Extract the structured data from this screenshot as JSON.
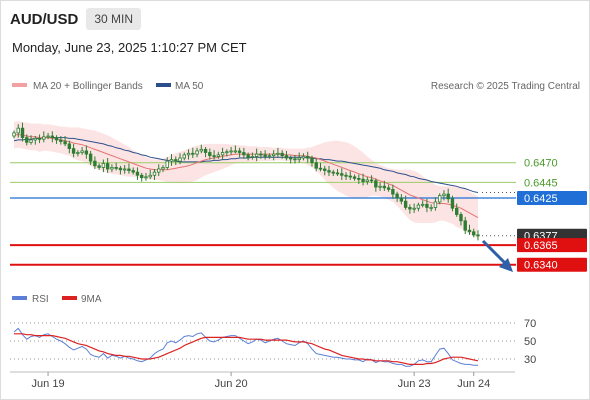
{
  "header": {
    "symbol": "AUD/USD",
    "timeframe": "30 MIN",
    "datetime": "Monday, June 23, 2025 1:10:27 PM CET"
  },
  "legend": {
    "ma20_bb": "MA 20 + Bollinger Bands",
    "ma50": "MA 50",
    "copyright": "Research © 2025 Trading Central",
    "rsi": "RSI",
    "ma9": "9MA"
  },
  "colors": {
    "candle": "#2e7d32",
    "ma20": "#e57373",
    "bollinger_fill": "#fde4e4",
    "ma50": "#2c4f8c",
    "green_level": "#9ccc65",
    "blue_level": "#1f6fd6",
    "red_level": "#e01010",
    "current_label": "#333333",
    "arrow": "#2e5fa8",
    "rsi": "#5b7fd6",
    "rsi_ma": "#dd2222"
  },
  "chart_data": {
    "type": "candlestick",
    "series_names": [
      "AUD/USD",
      "MA 20 + Bollinger Bands",
      "MA 50",
      "RSI",
      "9MA"
    ],
    "x_ticks": [
      "Jun 19",
      "Jun 20",
      "Jun 23",
      "Jun 24"
    ],
    "price_levels": [
      {
        "value": 0.647,
        "label": "0.6470",
        "kind": "resistance"
      },
      {
        "value": 0.6445,
        "label": "0.6445",
        "kind": "resistance"
      },
      {
        "value": 0.6425,
        "label": "0.6425",
        "kind": "pivot"
      },
      {
        "value": 0.6377,
        "label": "0.6377",
        "kind": "current"
      },
      {
        "value": 0.6365,
        "label": "0.6365",
        "kind": "target"
      },
      {
        "value": 0.634,
        "label": "0.6340",
        "kind": "target"
      }
    ],
    "price_range": [
      0.6318,
      0.6555
    ],
    "rsi_ticks": [
      70,
      50,
      30
    ],
    "rsi_range": [
      20,
      80
    ],
    "close": [
      0.6508,
      0.6514,
      0.6502,
      0.6496,
      0.6499,
      0.6501,
      0.65,
      0.6503,
      0.6504,
      0.6502,
      0.6499,
      0.6497,
      0.6494,
      0.6488,
      0.6482,
      0.6483,
      0.6485,
      0.6481,
      0.6472,
      0.6466,
      0.6464,
      0.6469,
      0.6462,
      0.6464,
      0.6463,
      0.6461,
      0.6462,
      0.646,
      0.6458,
      0.6454,
      0.6451,
      0.6452,
      0.6454,
      0.6458,
      0.6462,
      0.6464,
      0.6472,
      0.6474,
      0.6472,
      0.6476,
      0.648,
      0.6482,
      0.6481,
      0.6485,
      0.6487,
      0.6483,
      0.6479,
      0.6478,
      0.648,
      0.6483,
      0.6484,
      0.6485,
      0.6485,
      0.6483,
      0.648,
      0.6477,
      0.6478,
      0.6481,
      0.648,
      0.6478,
      0.6479,
      0.6481,
      0.6482,
      0.6479,
      0.6476,
      0.6475,
      0.6474,
      0.6476,
      0.6478,
      0.6476,
      0.647,
      0.6463,
      0.6462,
      0.646,
      0.6458,
      0.6457,
      0.6456,
      0.6454,
      0.6453,
      0.6452,
      0.645,
      0.6449,
      0.6446,
      0.6448,
      0.6447,
      0.6439,
      0.644,
      0.6438,
      0.6436,
      0.643,
      0.6425,
      0.6421,
      0.6413,
      0.6411,
      0.6412,
      0.6416,
      0.6417,
      0.6413,
      0.6413,
      0.642,
      0.6428,
      0.643,
      0.6424,
      0.6412,
      0.6404,
      0.6396,
      0.6384,
      0.6382,
      0.6378,
      0.6377
    ],
    "ma20": [
      0.6505,
      0.6506,
      0.6505,
      0.6504,
      0.6503,
      0.6503,
      0.6502,
      0.6502,
      0.6502,
      0.6501,
      0.65,
      0.6499,
      0.6498,
      0.6497,
      0.6495,
      0.6494,
      0.6493,
      0.6491,
      0.6489,
      0.6487,
      0.6485,
      0.6483,
      0.6481,
      0.6479,
      0.6477,
      0.6475,
      0.6473,
      0.6471,
      0.6469,
      0.6467,
      0.6465,
      0.6463,
      0.6462,
      0.6461,
      0.6461,
      0.6461,
      0.6461,
      0.6462,
      0.6463,
      0.6464,
      0.6465,
      0.6466,
      0.6468,
      0.647,
      0.6472,
      0.6474,
      0.6475,
      0.6476,
      0.6477,
      0.6478,
      0.6479,
      0.648,
      0.6481,
      0.6481,
      0.6481,
      0.6481,
      0.6481,
      0.6481,
      0.6481,
      0.6481,
      0.6481,
      0.6481,
      0.6481,
      0.6481,
      0.648,
      0.648,
      0.6479,
      0.6479,
      0.6479,
      0.6478,
      0.6477,
      0.6476,
      0.6474,
      0.6472,
      0.647,
      0.6468,
      0.6466,
      0.6464,
      0.6462,
      0.646,
      0.6458,
      0.6456,
      0.6454,
      0.6452,
      0.6451,
      0.6449,
      0.6447,
      0.6445,
      0.6443,
      0.6441,
      0.6438,
      0.6435,
      0.6432,
      0.6429,
      0.6427,
      0.6425,
      0.6423,
      0.6421,
      0.6419,
      0.6418,
      0.6418,
      0.6418,
      0.6417,
      0.6416,
      0.6414,
      0.6412,
      0.6409,
      0.6406,
      0.6403,
      0.64
    ],
    "bb_upper": [
      0.6522,
      0.6523,
      0.6522,
      0.6521,
      0.652,
      0.652,
      0.652,
      0.6519,
      0.6519,
      0.6518,
      0.6517,
      0.6516,
      0.6516,
      0.6515,
      0.6515,
      0.6515,
      0.6514,
      0.6513,
      0.6512,
      0.6511,
      0.6509,
      0.6507,
      0.6505,
      0.6502,
      0.6499,
      0.6496,
      0.6493,
      0.649,
      0.6486,
      0.6483,
      0.648,
      0.6477,
      0.6475,
      0.6474,
      0.6474,
      0.6475,
      0.6477,
      0.648,
      0.6482,
      0.6484,
      0.6486,
      0.6488,
      0.649,
      0.6492,
      0.6493,
      0.6494,
      0.6494,
      0.6494,
      0.6494,
      0.6494,
      0.6494,
      0.6493,
      0.6493,
      0.6492,
      0.6492,
      0.6491,
      0.6491,
      0.6491,
      0.649,
      0.649,
      0.649,
      0.6489,
      0.6489,
      0.6489,
      0.6488,
      0.6488,
      0.6488,
      0.6488,
      0.6488,
      0.6489,
      0.649,
      0.6492,
      0.6494,
      0.6496,
      0.6497,
      0.6498,
      0.6498,
      0.6497,
      0.6496,
      0.6494,
      0.6491,
      0.6487,
      0.6483,
      0.6478,
      0.6474,
      0.647,
      0.6467,
      0.6465,
      0.6463,
      0.6462,
      0.6461,
      0.6461,
      0.6461,
      0.6461,
      0.646,
      0.6457,
      0.6453,
      0.6449,
      0.6445,
      0.6442,
      0.644,
      0.644,
      0.644,
      0.644,
      0.644,
      0.6438,
      0.6436,
      0.6433,
      0.643,
      0.6427
    ],
    "bb_lower": [
      0.6488,
      0.6489,
      0.6488,
      0.6487,
      0.6486,
      0.6486,
      0.6484,
      0.6485,
      0.6485,
      0.6484,
      0.6483,
      0.6482,
      0.648,
      0.6479,
      0.6475,
      0.6473,
      0.6472,
      0.6469,
      0.6466,
      0.6463,
      0.6461,
      0.6459,
      0.6457,
      0.6456,
      0.6455,
      0.6454,
      0.6453,
      0.6452,
      0.6452,
      0.6451,
      0.645,
      0.6449,
      0.6449,
      0.6448,
      0.6448,
      0.6447,
      0.6445,
      0.6444,
      0.6444,
      0.6444,
      0.6444,
      0.6444,
      0.6446,
      0.6448,
      0.6451,
      0.6454,
      0.6456,
      0.6458,
      0.646,
      0.6462,
      0.6464,
      0.6467,
      0.6469,
      0.647,
      0.647,
      0.6471,
      0.6471,
      0.6471,
      0.6472,
      0.6472,
      0.6472,
      0.6473,
      0.6473,
      0.6473,
      0.6472,
      0.6472,
      0.647,
      0.647,
      0.647,
      0.6467,
      0.6464,
      0.646,
      0.6454,
      0.6448,
      0.6443,
      0.6438,
      0.6434,
      0.6431,
      0.6428,
      0.6426,
      0.6425,
      0.6425,
      0.6425,
      0.6426,
      0.6428,
      0.6428,
      0.6427,
      0.6425,
      0.6423,
      0.642,
      0.6415,
      0.6409,
      0.6403,
      0.6397,
      0.6394,
      0.6393,
      0.6393,
      0.6393,
      0.6393,
      0.6394,
      0.6396,
      0.6396,
      0.6394,
      0.6392,
      0.6388,
      0.6386,
      0.6382,
      0.6379,
      0.6376,
      0.6373
    ],
    "ma50": [
      0.6498,
      0.6499,
      0.6499,
      0.65,
      0.65,
      0.6501,
      0.6501,
      0.6502,
      0.6502,
      0.6502,
      0.6502,
      0.6502,
      0.6502,
      0.6501,
      0.6501,
      0.65,
      0.6499,
      0.6498,
      0.6497,
      0.6496,
      0.6495,
      0.6494,
      0.6492,
      0.6491,
      0.6489,
      0.6488,
      0.6486,
      0.6485,
      0.6483,
      0.6482,
      0.648,
      0.6479,
      0.6477,
      0.6476,
      0.6475,
      0.6474,
      0.6473,
      0.6472,
      0.6472,
      0.6471,
      0.6471,
      0.6471,
      0.6471,
      0.6471,
      0.6471,
      0.6472,
      0.6472,
      0.6473,
      0.6473,
      0.6474,
      0.6474,
      0.6475,
      0.6475,
      0.6476,
      0.6476,
      0.6476,
      0.6477,
      0.6477,
      0.6477,
      0.6477,
      0.6477,
      0.6477,
      0.6477,
      0.6477,
      0.6477,
      0.6477,
      0.6477,
      0.6477,
      0.6477,
      0.6476,
      0.6476,
      0.6475,
      0.6475,
      0.6474,
      0.6474,
      0.6473,
      0.6472,
      0.6472,
      0.6471,
      0.647,
      0.6469,
      0.6468,
      0.6467,
      0.6466,
      0.6465,
      0.6464,
      0.6463,
      0.6461,
      0.646,
      0.6459,
      0.6457,
      0.6456,
      0.6455,
      0.6453,
      0.6452,
      0.645,
      0.6449,
      0.6448,
      0.6446,
      0.6445,
      0.6444,
      0.6443,
      0.6442,
      0.6441,
      0.644,
      0.6438,
      0.6437,
      0.6435,
      0.6433,
      0.6432
    ],
    "rsi": [
      60,
      64,
      57,
      52,
      55,
      56,
      54,
      57,
      58,
      55,
      52,
      50,
      47,
      43,
      40,
      42,
      44,
      41,
      35,
      33,
      32,
      36,
      31,
      34,
      33,
      31,
      33,
      31,
      30,
      28,
      27,
      29,
      31,
      36,
      39,
      41,
      48,
      50,
      48,
      51,
      55,
      56,
      55,
      58,
      59,
      54,
      50,
      49,
      51,
      54,
      55,
      56,
      56,
      53,
      50,
      47,
      49,
      52,
      51,
      48,
      50,
      52,
      53,
      50,
      47,
      46,
      45,
      48,
      50,
      47,
      41,
      36,
      35,
      34,
      33,
      32,
      32,
      31,
      30,
      30,
      29,
      29,
      27,
      30,
      29,
      26,
      28,
      27,
      27,
      25,
      24,
      24,
      22,
      22,
      24,
      28,
      29,
      27,
      27,
      34,
      41,
      42,
      36,
      29,
      27,
      25,
      24,
      24,
      23,
      23
    ],
    "rsi_ma": [
      58,
      58,
      58,
      57,
      57,
      56,
      56,
      56,
      56,
      56,
      55,
      54,
      53,
      51,
      49,
      47,
      46,
      45,
      43,
      41,
      39,
      38,
      36,
      35,
      34,
      34,
      33,
      33,
      32,
      31,
      30,
      30,
      30,
      31,
      32,
      34,
      36,
      38,
      40,
      42,
      45,
      47,
      49,
      51,
      53,
      54,
      54,
      54,
      54,
      54,
      54,
      54,
      54,
      54,
      53,
      52,
      52,
      52,
      52,
      51,
      51,
      51,
      51,
      51,
      51,
      50,
      49,
      49,
      49,
      48,
      47,
      45,
      43,
      41,
      40,
      38,
      36,
      34,
      33,
      32,
      31,
      30,
      30,
      29,
      29,
      28,
      28,
      28,
      28,
      27,
      27,
      26,
      25,
      24,
      24,
      24,
      24,
      25,
      25,
      26,
      28,
      30,
      31,
      32,
      32,
      32,
      31,
      30,
      29,
      28
    ]
  }
}
